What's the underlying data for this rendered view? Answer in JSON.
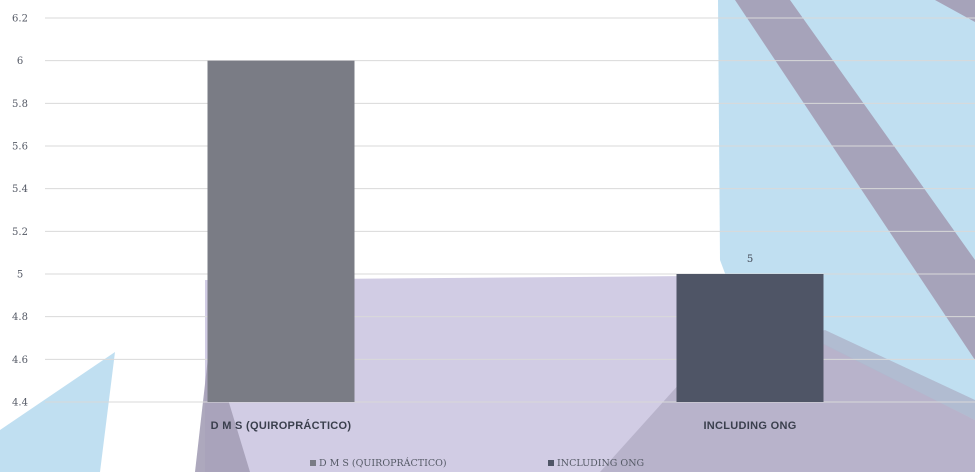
{
  "chart_data": {
    "type": "bar",
    "categories": [
      "D M S (QUIROPRÁCTICO)",
      "INCLUDING ONG"
    ],
    "values": [
      6,
      5
    ],
    "data_labels": [
      "",
      "5"
    ],
    "ylim": [
      4.4,
      6.2
    ],
    "yticks": [
      "4.4",
      "4.6",
      "4.8",
      "5",
      "5.2",
      "5.4",
      "5.6",
      "5.8",
      "6",
      "6.2"
    ],
    "legend": [
      "D M S (QUIROPRÁCTICO)",
      "INCLUDING ONG"
    ],
    "legend_position": "bottom",
    "grid": true,
    "colors": {
      "series": [
        "#7a7c85",
        "#4f5566"
      ],
      "grid": "#d9d9d9",
      "bg_light_blue": "#b9dcf0",
      "bg_lavender": "#cfc9e3",
      "bg_mauve": "#a49fb6"
    }
  }
}
